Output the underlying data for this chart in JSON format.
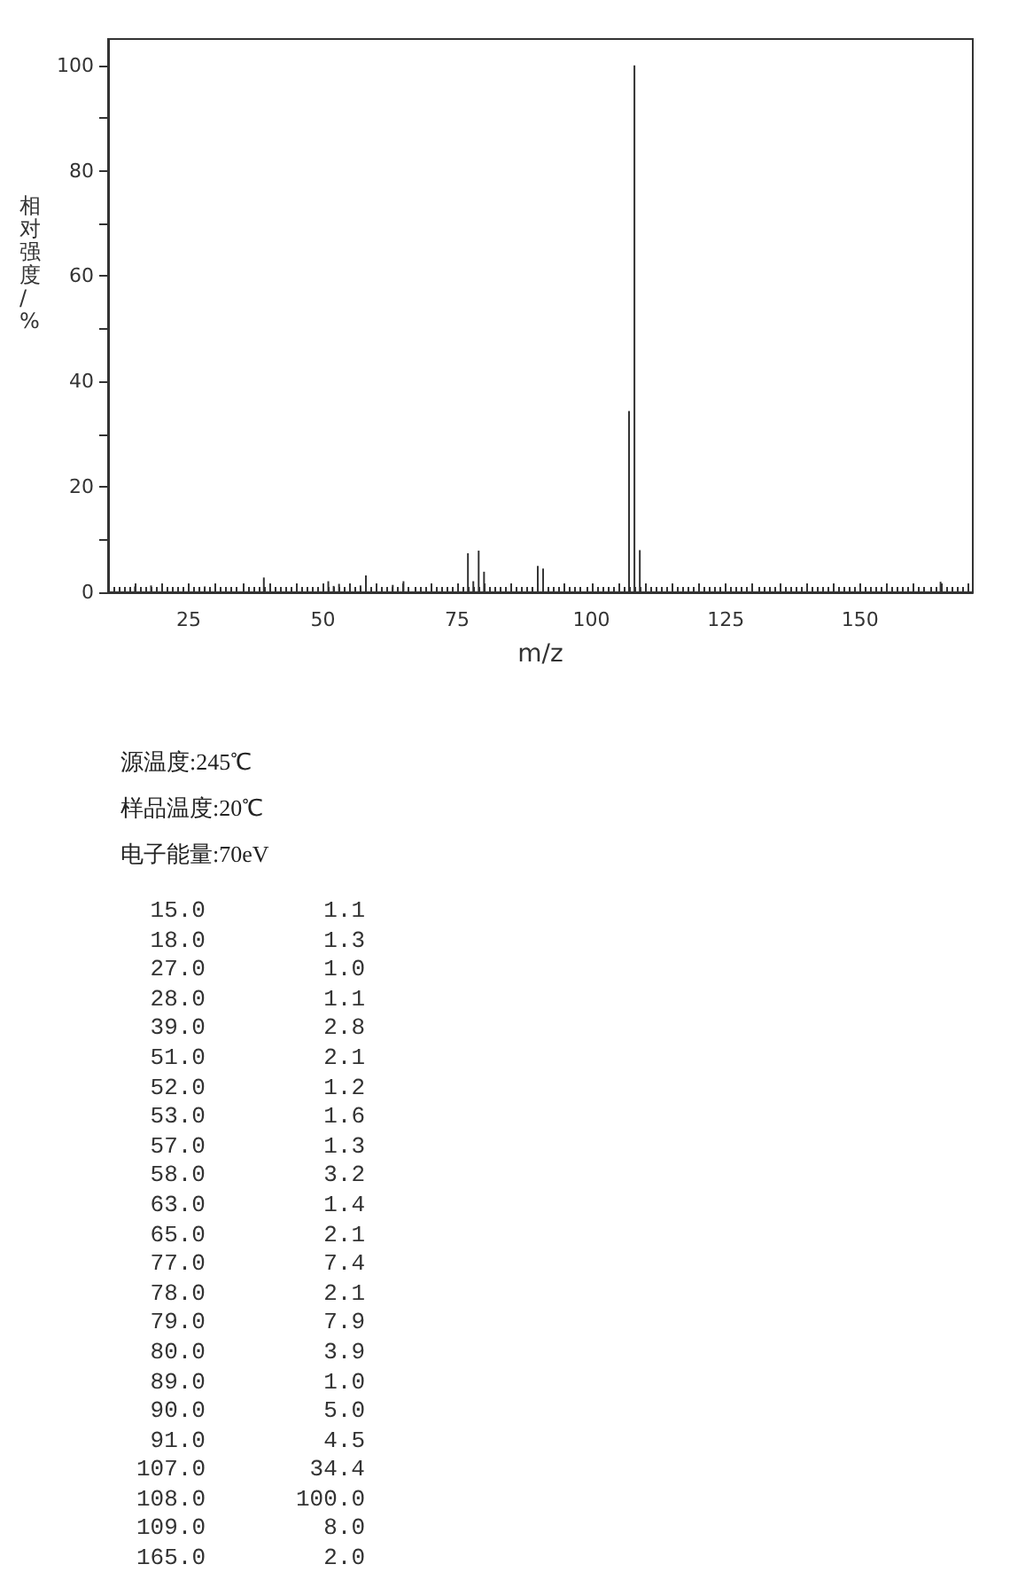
{
  "chart_data": [
    {
      "type": "bar",
      "xlabel": "m/z",
      "ylabel": "相对强度/%",
      "x": [
        15,
        18,
        27,
        28,
        39,
        51,
        52,
        53,
        57,
        58,
        63,
        65,
        77,
        78,
        79,
        80,
        89,
        90,
        91,
        107,
        108,
        109,
        165
      ],
      "values": [
        1.1,
        1.3,
        1.0,
        1.1,
        2.8,
        2.1,
        1.2,
        1.6,
        1.3,
        3.2,
        1.4,
        2.1,
        7.4,
        2.1,
        7.9,
        3.9,
        1.0,
        5.0,
        4.5,
        34.4,
        100.0,
        8.0,
        2.0
      ],
      "color": "#333333",
      "xlim": [
        10,
        171
      ],
      "xticks": [
        {
          "value": 10,
          "label": null
        },
        {
          "value": 15,
          "label": null
        },
        {
          "value": 20,
          "label": null
        },
        25,
        {
          "value": 30,
          "label": null
        },
        {
          "value": 35,
          "label": null
        },
        {
          "value": 40,
          "label": null
        },
        {
          "value": 45,
          "label": null
        },
        50,
        {
          "value": 55,
          "label": null
        },
        {
          "value": 60,
          "label": null
        },
        {
          "value": 65,
          "label": null
        },
        {
          "value": 70,
          "label": null
        },
        75,
        {
          "value": 80,
          "label": null
        },
        {
          "value": 85,
          "label": null
        },
        {
          "value": 90,
          "label": null
        },
        {
          "value": 95,
          "label": null
        },
        100,
        {
          "value": 105,
          "label": null
        },
        {
          "value": 110,
          "label": null
        },
        {
          "value": 115,
          "label": null
        },
        {
          "value": 120,
          "label": null
        },
        125,
        {
          "value": 130,
          "label": null
        },
        {
          "value": 135,
          "label": null
        },
        {
          "value": 140,
          "label": null
        },
        {
          "value": 145,
          "label": null
        },
        150,
        {
          "value": 155,
          "label": null
        },
        {
          "value": 160,
          "label": null
        },
        {
          "value": 165,
          "label": null
        },
        {
          "value": 170,
          "label": null
        }
      ],
      "ylim": [
        0,
        105
      ],
      "yticks": [
        0,
        {
          "value": 10,
          "label": null
        },
        20,
        {
          "value": 30,
          "label": null
        },
        40,
        {
          "value": 50,
          "label": null
        },
        60,
        {
          "value": 70,
          "label": null
        },
        80,
        {
          "value": 90,
          "label": null
        },
        100
      ],
      "grid": false,
      "annotations": [
        "源温度:245℃",
        "样品温度:20℃",
        "电子能量:70eV"
      ]
    },
    {
      "type": "other",
      "categories": [
        "15.0",
        "18.0",
        "27.0",
        "28.0",
        "39.0",
        "51.0",
        "52.0",
        "53.0",
        "57.0",
        "58.0",
        "63.0",
        "65.0",
        "77.0",
        "78.0",
        "79.0",
        "80.0",
        "89.0",
        "90.0",
        "91.0",
        "107.0",
        "108.0",
        "109.0",
        "165.0"
      ],
      "values": [
        1.1,
        1.3,
        1.0,
        1.1,
        2.8,
        2.1,
        1.2,
        1.6,
        1.3,
        3.2,
        1.4,
        2.1,
        7.4,
        2.1,
        7.9,
        3.9,
        1.0,
        5.0,
        4.5,
        34.4,
        100.0,
        8.0,
        2.0
      ],
      "value_labels": [
        "1.1",
        "1.3",
        "1.0",
        "1.1",
        "2.8",
        "2.1",
        "1.2",
        "1.6",
        "1.3",
        "3.2",
        "1.4",
        "2.1",
        "7.4",
        "2.1",
        "7.9",
        "3.9",
        "1.0",
        "5.0",
        "4.5",
        "34.4",
        "100.0",
        "8.0",
        "2.0"
      ]
    }
  ]
}
